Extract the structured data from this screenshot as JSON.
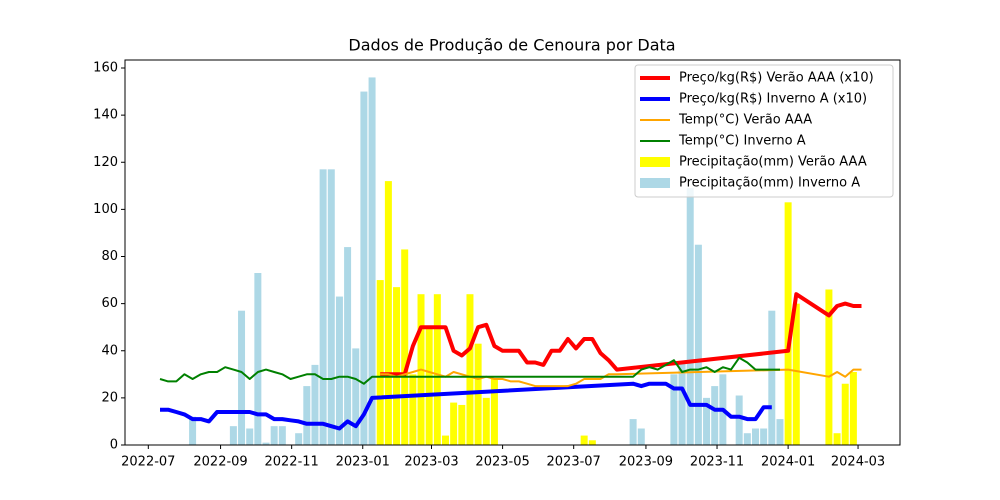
{
  "chart_data": {
    "type": "combo",
    "title": "Dados de Produção de Cenoura por Data",
    "xlim": [
      "2022-06-11",
      "2024-04-06"
    ],
    "xticks": [
      "2022-07",
      "2022-09",
      "2022-11",
      "2023-01",
      "2023-03",
      "2023-05",
      "2023-07",
      "2023-09",
      "2023-11",
      "2024-01",
      "2024-03"
    ],
    "ylim": [
      0,
      163.4
    ],
    "yticks": [
      0,
      20,
      40,
      60,
      80,
      100,
      120,
      140,
      160
    ],
    "grid": false,
    "legend": "upper right",
    "series": [
      {
        "name": "Preço/kg(R$) Verão AAA (x10)",
        "kind": "line",
        "color": "#ff0000",
        "width": 4,
        "x": [
          "2023-01-16",
          "2023-01-23",
          "2023-01-30",
          "2023-02-06",
          "2023-02-13",
          "2023-02-20",
          "2023-02-27",
          "2023-03-06",
          "2023-03-13",
          "2023-03-20",
          "2023-03-27",
          "2023-04-03",
          "2023-04-10",
          "2023-04-17",
          "2023-04-24",
          "2023-05-01",
          "2023-05-08",
          "2023-05-15",
          "2023-05-22",
          "2023-05-29",
          "2023-06-05",
          "2023-06-12",
          "2023-06-19",
          "2023-06-26",
          "2023-07-03",
          "2023-07-10",
          "2023-07-17",
          "2023-07-24",
          "2023-07-31",
          "2023-08-07",
          "2024-01-01",
          "2024-01-08",
          "2024-02-05",
          "2024-02-12",
          "2024-02-19",
          "2024-02-26",
          "2024-03-04"
        ],
        "values": [
          30,
          30,
          30,
          30,
          42,
          50,
          50,
          50,
          50,
          40,
          38,
          41,
          50,
          51,
          42,
          40,
          40,
          40,
          35,
          35,
          34,
          40,
          40,
          45,
          41,
          45,
          45,
          39,
          36,
          32,
          40,
          64,
          55,
          59,
          60,
          59,
          59
        ]
      },
      {
        "name": "Preço/kg(R$) Inverno A (x10)",
        "kind": "line",
        "color": "#0000ff",
        "width": 4,
        "x": [
          "2022-07-11",
          "2022-07-18",
          "2022-07-25",
          "2022-08-01",
          "2022-08-08",
          "2022-08-15",
          "2022-08-22",
          "2022-08-29",
          "2022-09-05",
          "2022-09-12",
          "2022-09-19",
          "2022-09-26",
          "2022-10-03",
          "2022-10-10",
          "2022-10-17",
          "2022-10-24",
          "2022-10-31",
          "2022-11-07",
          "2022-11-14",
          "2022-11-21",
          "2022-11-28",
          "2022-12-05",
          "2022-12-12",
          "2022-12-19",
          "2022-12-26",
          "2023-01-02",
          "2023-01-09",
          "2023-08-21",
          "2023-08-28",
          "2023-09-04",
          "2023-09-11",
          "2023-09-18",
          "2023-09-25",
          "2023-10-02",
          "2023-10-09",
          "2023-10-16",
          "2023-10-23",
          "2023-10-30",
          "2023-11-06",
          "2023-11-13",
          "2023-11-20",
          "2023-11-27",
          "2023-12-04",
          "2023-12-11",
          "2023-12-18"
        ],
        "values": [
          15,
          15,
          14,
          13,
          11,
          11,
          10,
          14,
          14,
          14,
          14,
          14,
          13,
          13,
          11,
          11,
          10.5,
          10,
          9,
          9,
          9,
          8,
          7,
          10,
          8,
          13,
          20,
          26,
          25,
          26,
          26,
          26,
          24,
          24,
          17,
          17,
          17,
          15,
          15,
          12,
          12,
          11,
          11,
          16,
          16
        ]
      },
      {
        "name": "Temp(°C) Verão AAA",
        "kind": "line",
        "color": "#ffa500",
        "width": 2,
        "x": [
          "2023-01-16",
          "2023-01-23",
          "2023-01-30",
          "2023-02-06",
          "2023-02-13",
          "2023-02-20",
          "2023-02-27",
          "2023-03-06",
          "2023-03-13",
          "2023-03-20",
          "2023-03-27",
          "2023-04-03",
          "2023-04-10",
          "2023-04-17",
          "2023-04-24",
          "2023-05-01",
          "2023-05-08",
          "2023-05-15",
          "2023-05-22",
          "2023-05-29",
          "2023-06-05",
          "2023-06-12",
          "2023-06-19",
          "2023-06-26",
          "2023-07-03",
          "2023-07-10",
          "2023-07-17",
          "2023-07-24",
          "2023-07-31",
          "2023-08-07",
          "2024-01-01",
          "2024-02-05",
          "2024-02-12",
          "2024-02-19",
          "2024-02-26",
          "2024-03-04"
        ],
        "values": [
          30,
          30,
          29,
          30,
          31,
          32,
          31,
          30,
          29,
          31,
          30,
          29,
          28,
          29,
          28,
          28,
          27,
          27,
          26,
          25,
          25,
          25,
          25,
          25,
          26,
          28,
          28,
          28,
          30,
          30,
          32,
          29,
          31,
          29,
          32,
          32
        ]
      },
      {
        "name": "Temp(°C) Inverno A",
        "kind": "line",
        "color": "#008000",
        "width": 2,
        "x": [
          "2022-07-11",
          "2022-07-18",
          "2022-07-25",
          "2022-08-01",
          "2022-08-08",
          "2022-08-15",
          "2022-08-22",
          "2022-08-29",
          "2022-09-05",
          "2022-09-12",
          "2022-09-19",
          "2022-09-26",
          "2022-10-03",
          "2022-10-10",
          "2022-10-17",
          "2022-10-24",
          "2022-10-31",
          "2022-11-07",
          "2022-11-14",
          "2022-11-21",
          "2022-11-28",
          "2022-12-05",
          "2022-12-12",
          "2022-12-19",
          "2022-12-26",
          "2023-01-02",
          "2023-01-09",
          "2023-08-21",
          "2023-08-28",
          "2023-09-04",
          "2023-09-11",
          "2023-09-18",
          "2023-09-25",
          "2023-10-02",
          "2023-10-09",
          "2023-10-16",
          "2023-10-23",
          "2023-10-30",
          "2023-11-06",
          "2023-11-13",
          "2023-11-20",
          "2023-11-27",
          "2023-12-04",
          "2023-12-11",
          "2023-12-18",
          "2023-12-25"
        ],
        "values": [
          28,
          27,
          27,
          30,
          28,
          30,
          31,
          31,
          33,
          32,
          31,
          28,
          31,
          32,
          31,
          30,
          28,
          29,
          30,
          30,
          28,
          28,
          29,
          29,
          28,
          26,
          29,
          29,
          32,
          33,
          32,
          34,
          36,
          31,
          32,
          32,
          33,
          31,
          33,
          32,
          37,
          35,
          32,
          32,
          32,
          32
        ]
      },
      {
        "name": "Precipitação(mm) Verão AAA",
        "kind": "bar",
        "color": "#ffff00",
        "x": [
          "2023-01-16",
          "2023-01-23",
          "2023-01-30",
          "2023-02-06",
          "2023-02-13",
          "2023-02-20",
          "2023-02-27",
          "2023-03-06",
          "2023-03-13",
          "2023-03-20",
          "2023-03-27",
          "2023-04-03",
          "2023-04-10",
          "2023-04-17",
          "2023-04-24",
          "2023-07-10",
          "2023-07-17",
          "2024-01-01",
          "2024-01-08",
          "2024-02-05",
          "2024-02-12",
          "2024-02-19",
          "2024-02-26"
        ],
        "values": [
          70,
          112,
          67,
          83,
          30,
          64,
          50,
          64,
          4,
          18,
          17,
          64,
          43,
          20,
          28,
          4,
          2,
          103,
          60,
          66,
          5,
          26,
          31
        ]
      },
      {
        "name": "Precipitação(mm) Inverno A",
        "kind": "bar",
        "color": "#add8e6",
        "x": [
          "2022-08-08",
          "2022-09-12",
          "2022-09-19",
          "2022-09-26",
          "2022-10-03",
          "2022-10-10",
          "2022-10-17",
          "2022-10-24",
          "2022-11-07",
          "2022-11-14",
          "2022-11-21",
          "2022-11-28",
          "2022-12-05",
          "2022-12-12",
          "2022-12-19",
          "2022-12-26",
          "2023-01-02",
          "2023-01-09",
          "2023-08-21",
          "2023-08-28",
          "2023-09-25",
          "2023-10-02",
          "2023-10-09",
          "2023-10-16",
          "2023-10-23",
          "2023-10-30",
          "2023-11-06",
          "2023-11-20",
          "2023-11-27",
          "2023-12-04",
          "2023-12-11",
          "2023-12-18",
          "2023-12-25"
        ],
        "values": [
          12,
          8,
          57,
          7,
          73,
          1,
          8,
          8,
          5,
          25,
          34,
          117,
          117,
          63,
          84,
          41,
          150,
          156,
          11,
          7,
          30,
          35,
          109,
          85,
          20,
          25,
          30,
          21,
          5,
          7,
          7,
          57,
          11
        ]
      }
    ]
  }
}
